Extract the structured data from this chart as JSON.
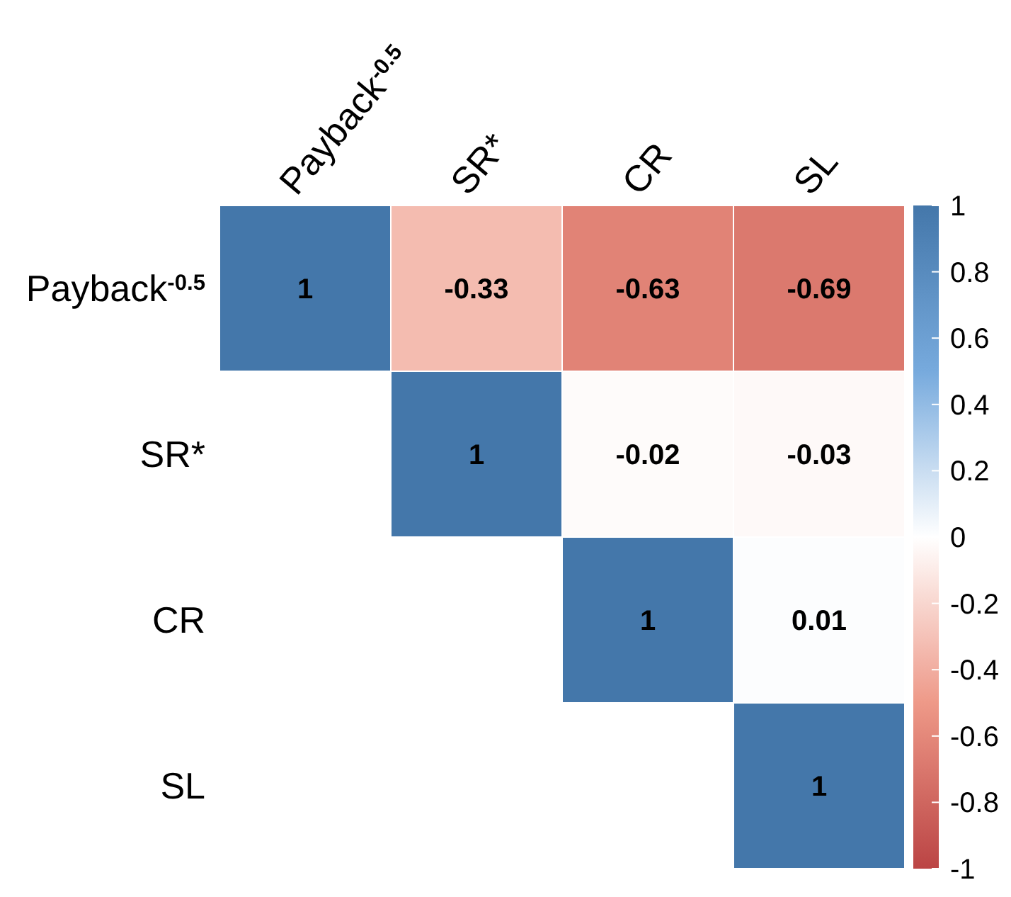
{
  "chart_data": {
    "type": "heatmap",
    "categories": [
      "Payback$^{-0.5}$",
      "SR*",
      "CR",
      "SL"
    ],
    "y_categories": [
      "Payback$^{-0.5}$",
      "SR*",
      "CR",
      "SL"
    ],
    "cells": [
      [
        1,
        -0.33,
        -0.63,
        -0.69
      ],
      [
        null,
        1,
        -0.02,
        -0.03
      ],
      [
        null,
        null,
        1,
        0.01
      ],
      [
        null,
        null,
        null,
        1
      ]
    ],
    "data_labels": true,
    "clim": [
      -1,
      1
    ],
    "cticks": [
      -1,
      -0.8,
      -0.6,
      -0.4,
      -0.2,
      0,
      0.2,
      0.4,
      0.6,
      0.8,
      1
    ]
  }
}
